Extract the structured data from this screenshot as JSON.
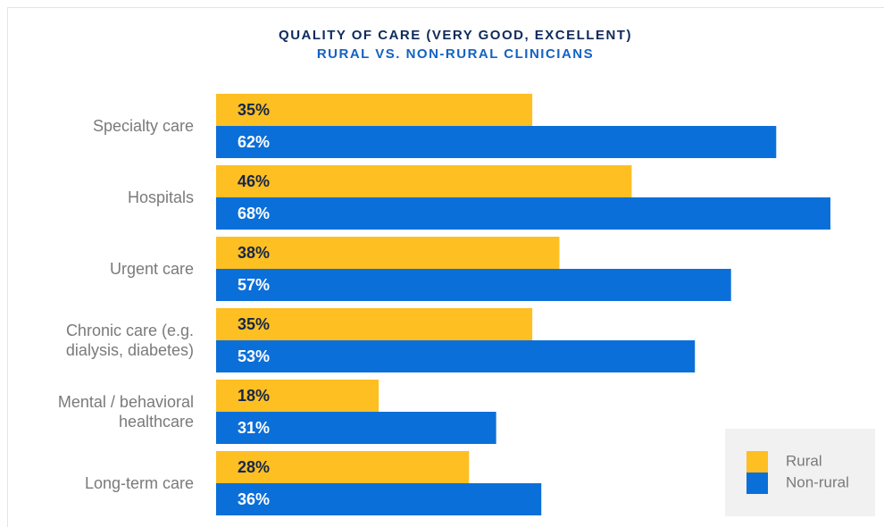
{
  "chart_data": {
    "type": "bar",
    "orientation": "horizontal",
    "title": "QUALITY OF CARE (VERY GOOD, EXCELLENT)",
    "subtitle": "RURAL VS. NON-RURAL CLINICIANS",
    "categories": [
      "Specialty care",
      "Hospitals",
      "Urgent care",
      "Chronic care (e.g.\ndialysis, diabetes)",
      "Mental / behavioral\nhealthcare",
      "Long-term care"
    ],
    "series": [
      {
        "name": "Rural",
        "color": "#fdbf22",
        "values": [
          35,
          46,
          38,
          35,
          18,
          28
        ],
        "value_labels": [
          "35%",
          "46%",
          "38%",
          "35%",
          "18%",
          "28%"
        ]
      },
      {
        "name": "Non-rural",
        "color": "#0b6fd9",
        "values": [
          62,
          68,
          57,
          53,
          31,
          36
        ],
        "value_labels": [
          "62%",
          "68%",
          "57%",
          "53%",
          "31%",
          "36%"
        ]
      }
    ],
    "legend": "lower right"
  }
}
